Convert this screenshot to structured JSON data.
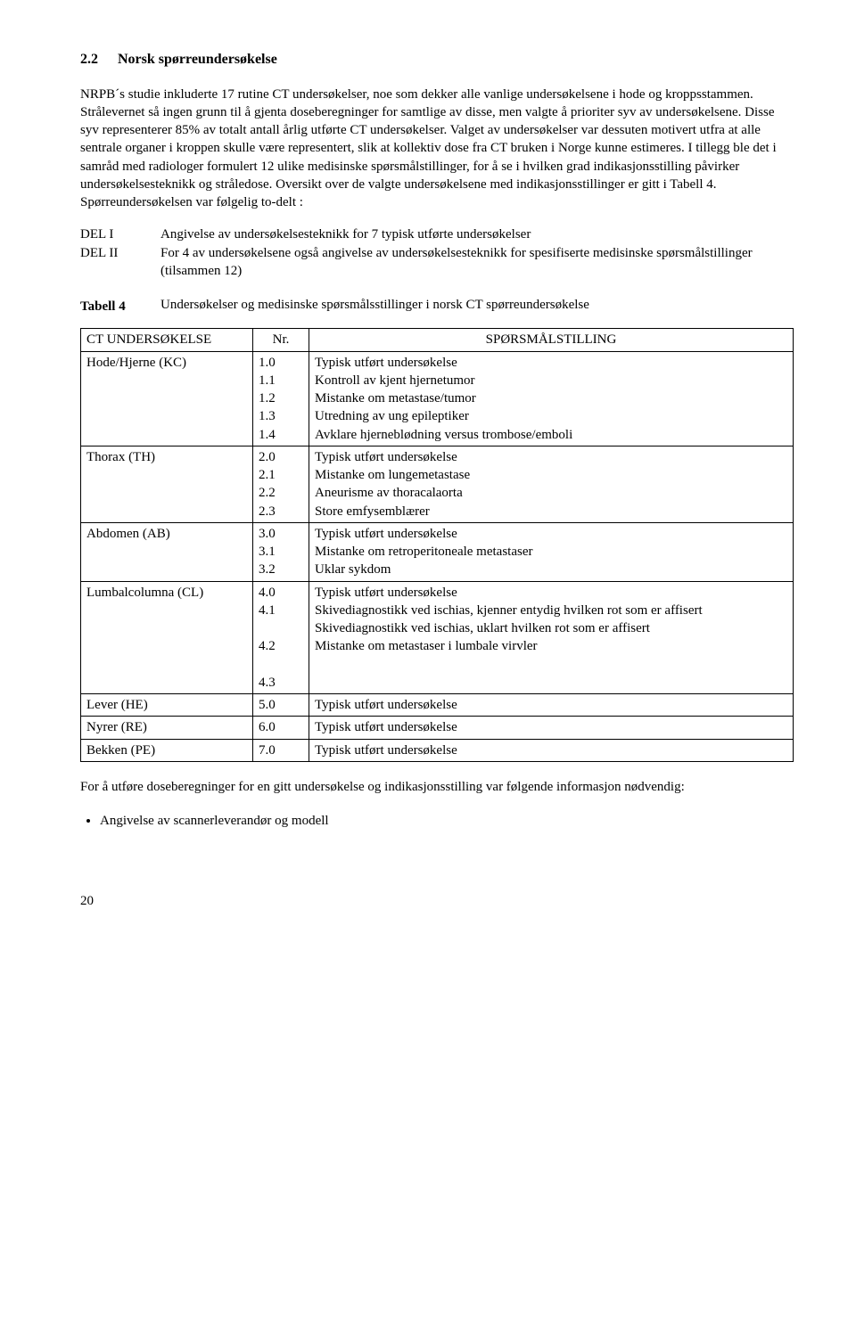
{
  "heading": {
    "number": "2.2",
    "title": "Norsk spørreundersøkelse"
  },
  "para1": "NRPB´s studie inkluderte 17 rutine CT undersøkelser, noe som dekker alle vanlige undersøkelsene i hode og kroppsstammen. Strålevernet så ingen grunn til å gjenta doseberegninger for samtlige av disse, men valgte å prioriter syv av undersøkelsene. Disse syv representerer 85% av totalt antall årlig utførte CT undersøkelser. Valget av undersøkelser var dessuten motivert utfra at alle sentrale organer i kroppen skulle være representert, slik at kollektiv dose fra CT bruken i Norge kunne estimeres. I tillegg ble det i samråd med radiologer formulert 12 ulike medisinske spørsmålstillinger, for å se i hvilken grad indikasjonsstilling påvirker undersøkelsesteknikk og stråledose. Oversikt over de valgte undersøkelsene med indikasjonsstillinger er gitt i Tabell 4. Spørreundersøkelsen var følgelig to-delt :",
  "del": {
    "items": [
      {
        "label": "DEL I",
        "text": "Angivelse av undersøkelsesteknikk for 7 typisk utførte undersøkelser"
      },
      {
        "label": "DEL II",
        "text": "For 4 av undersøkelsene også angivelse av undersøkelsesteknikk for spesifiserte medisinske spørsmålstillinger (tilsammen 12)"
      }
    ]
  },
  "table4": {
    "label": "Tabell 4",
    "caption": "Undersøkelser og medisinske spørsmålsstillinger i norsk CT spørreundersøkelse",
    "columns": [
      "CT UNDERSØKELSE",
      "Nr.",
      "SPØRSMÅLSTILLING"
    ],
    "rows": [
      {
        "c1": "Hode/Hjerne (KC)",
        "c2": "1.0\n1.1\n1.2\n1.3\n1.4",
        "c3": "Typisk utført undersøkelse\nKontroll av kjent hjernetumor\nMistanke om metastase/tumor\nUtredning av ung epileptiker\nAvklare hjerneblødning versus trombose/emboli"
      },
      {
        "c1": "Thorax (TH)",
        "c2": "2.0\n2.1\n2.2\n2.3",
        "c3": "Typisk utført undersøkelse\nMistanke om lungemetastase\nAneurisme av thoracalaorta\nStore emfysemblærer"
      },
      {
        "c1": "Abdomen (AB)",
        "c2": "3.0\n3.1\n3.2",
        "c3": "Typisk utført undersøkelse\nMistanke om retroperitoneale metastaser\nUklar sykdom"
      },
      {
        "c1": "Lumbalcolumna (CL)",
        "c2": "4.0\n4.1\n\n4.2\n\n4.3",
        "c3": "Typisk utført undersøkelse\nSkivediagnostikk ved ischias, kjenner entydig hvilken rot som er affisert\nSkivediagnostikk ved ischias, uklart hvilken rot som er affisert\nMistanke om metastaser i lumbale virvler"
      },
      {
        "c1": "Lever (HE)",
        "c2": "5.0",
        "c3": "Typisk utført undersøkelse"
      },
      {
        "c1": "Nyrer (RE)",
        "c2": "6.0",
        "c3": "Typisk utført undersøkelse"
      },
      {
        "c1": "Bekken (PE)",
        "c2": "7.0",
        "c3": "Typisk utført undersøkelse"
      }
    ]
  },
  "para2": "For å utføre doseberegninger for en gitt undersøkelse og indikasjonsstilling var følgende informasjon nødvendig:",
  "bullet1": "Angivelse av scannerleverandør og modell",
  "pageNumber": "20"
}
